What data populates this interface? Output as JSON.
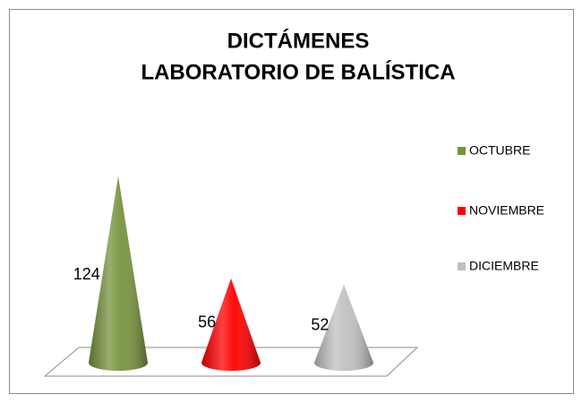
{
  "chart_data": {
    "type": "cone",
    "title": [
      "DICTÁMENES",
      "LABORATORIO DE BALÍSTICA"
    ],
    "series": [
      {
        "name": "OCTUBRE",
        "color": "#77933c",
        "values": [
          124
        ]
      },
      {
        "name": "NOVIEMBRE",
        "color": "#ff0000",
        "values": [
          56
        ]
      },
      {
        "name": "DICIEMBRE",
        "color": "#c0c0c0",
        "values": [
          52
        ]
      }
    ],
    "legend": "right"
  }
}
